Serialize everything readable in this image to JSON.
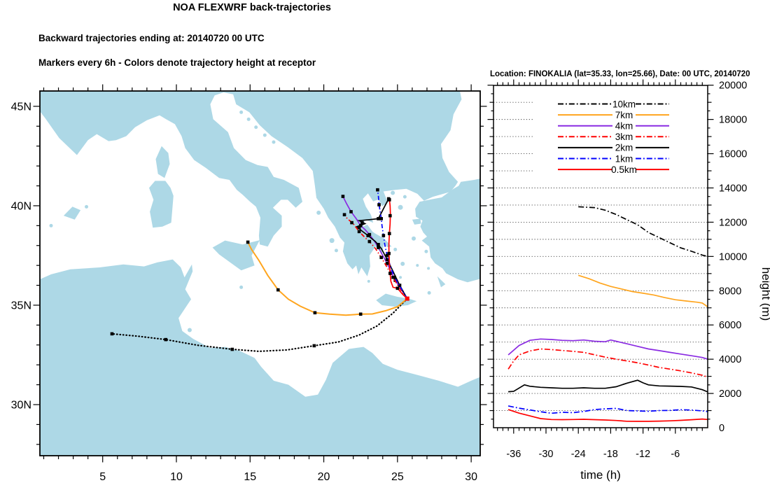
{
  "titles": {
    "main": "NOA FLEXWRF back-trajectories",
    "subtitle1": "Backward trajectories ending at: 20140720  00 UTC",
    "subtitle2": "Markers every 6h - Colors denote trajectory height at receptor",
    "panel_title": "Location: FINOKALIA (lat=35.33,  lon=25.66), Date: 00 UTC, 20140720",
    "time_axis_label": "time (h)",
    "height_axis_label": "height (m)"
  },
  "colors": {
    "land": "#ADD8E6",
    "sea": "#FFFFFF",
    "frame": "#000000",
    "grid": "#4a4a4a",
    "receptor": "#FF0000"
  },
  "chart_data": {
    "type": "line",
    "map_panel": {
      "extent": {
        "lon_min": 0.74,
        "lon_max": 30.61,
        "lat_min": 27.43,
        "lat_max": 45.77
      },
      "lon_ticks": [
        5,
        10,
        15,
        20,
        25,
        30
      ],
      "lon_tick_labels": [
        "5",
        "10",
        "15",
        "20",
        "25",
        "30"
      ],
      "lat_ticks": [
        30,
        35,
        40,
        45
      ],
      "lat_tick_labels": [
        "30N",
        "35N",
        "40N",
        "45N"
      ],
      "receptor": {
        "lon": 25.66,
        "lat": 35.33
      }
    },
    "profile_panel": {
      "xlabel": "time (h)",
      "ylabel": "height (m)",
      "xlim": [
        -39.7,
        0
      ],
      "ylim": [
        0,
        20000
      ],
      "xticks": [
        -36,
        -30,
        -24,
        -18,
        -12,
        -6
      ],
      "yticks": [
        0,
        2000,
        4000,
        6000,
        8000,
        10000,
        12000,
        14000,
        16000,
        18000,
        20000
      ],
      "grid_interval_m": 1000,
      "legend_position": "top-right"
    },
    "series": [
      {
        "name": "10km",
        "color": "#000000",
        "dash": "dashdot",
        "map_dash": "dotted",
        "map_path": [
          [
            25.66,
            35.33
          ],
          [
            24.7,
            34.6
          ],
          [
            23.6,
            33.95
          ],
          [
            22.4,
            33.5
          ],
          [
            21.0,
            33.15
          ],
          [
            19.35,
            32.96
          ],
          [
            17.5,
            32.75
          ],
          [
            15.6,
            32.68
          ],
          [
            13.79,
            32.78
          ],
          [
            11.5,
            32.98
          ],
          [
            9.28,
            33.27
          ],
          [
            7.4,
            33.44
          ],
          [
            5.63,
            33.56
          ]
        ],
        "map_markers": [
          [
            19.35,
            32.96
          ],
          [
            13.79,
            32.78
          ],
          [
            9.28,
            33.27
          ],
          [
            5.63,
            33.56
          ]
        ],
        "profile": [
          [
            -24,
            12900
          ],
          [
            -21,
            12850
          ],
          [
            -19,
            12700
          ],
          [
            -17,
            12450
          ],
          [
            -15,
            12150
          ],
          [
            -13,
            11850
          ],
          [
            -11,
            11400
          ],
          [
            -9,
            11100
          ],
          [
            -7,
            10800
          ],
          [
            -5,
            10500
          ],
          [
            -3,
            10300
          ],
          [
            -1,
            10080
          ],
          [
            0,
            10000
          ]
        ]
      },
      {
        "name": "7km",
        "color": "#FFA51E",
        "dash": "solid",
        "map_dash": "solid",
        "map_path": [
          [
            25.66,
            35.33
          ],
          [
            25.0,
            34.92
          ],
          [
            24.2,
            34.72
          ],
          [
            23.3,
            34.56
          ],
          [
            22.5,
            34.55
          ],
          [
            21.5,
            34.5
          ],
          [
            20.4,
            34.55
          ],
          [
            19.4,
            34.62
          ],
          [
            18.4,
            34.95
          ],
          [
            17.6,
            35.3
          ],
          [
            16.9,
            35.77
          ],
          [
            16.2,
            36.5
          ],
          [
            15.6,
            37.25
          ],
          [
            15.1,
            37.8
          ],
          [
            14.85,
            38.17
          ]
        ],
        "map_markers": [
          [
            22.5,
            34.55
          ],
          [
            19.4,
            34.62
          ],
          [
            16.9,
            35.77
          ],
          [
            14.85,
            38.17
          ]
        ],
        "profile": [
          [
            -24,
            8900
          ],
          [
            -22,
            8700
          ],
          [
            -20,
            8450
          ],
          [
            -18,
            8250
          ],
          [
            -16,
            8100
          ],
          [
            -14,
            7950
          ],
          [
            -12,
            7850
          ],
          [
            -10,
            7750
          ],
          [
            -8,
            7600
          ],
          [
            -6,
            7470
          ],
          [
            -4,
            7400
          ],
          [
            -2,
            7330
          ],
          [
            -1,
            7280
          ],
          [
            0,
            7060
          ]
        ]
      },
      {
        "name": "4km",
        "color": "#8A2BE2",
        "dash": "solid",
        "map_dash": "solid",
        "map_path": [
          [
            25.66,
            35.33
          ],
          [
            25.25,
            35.8
          ],
          [
            24.85,
            36.25
          ],
          [
            24.55,
            36.7
          ],
          [
            24.3,
            37.1
          ],
          [
            24.0,
            37.5
          ],
          [
            23.7,
            37.9
          ],
          [
            23.4,
            38.25
          ],
          [
            23.1,
            38.55
          ],
          [
            22.8,
            38.8
          ],
          [
            22.5,
            39.0
          ],
          [
            22.2,
            39.35
          ],
          [
            21.85,
            39.7
          ],
          [
            21.55,
            40.1
          ],
          [
            21.3,
            40.47
          ]
        ],
        "map_markers": [
          [
            24.85,
            36.25
          ],
          [
            24.3,
            37.1
          ],
          [
            23.7,
            37.9
          ],
          [
            23.1,
            38.55
          ],
          [
            22.5,
            39.0
          ],
          [
            21.85,
            39.7
          ],
          [
            21.3,
            40.47
          ]
        ],
        "profile": [
          [
            -37,
            4250
          ],
          [
            -35,
            4800
          ],
          [
            -33,
            5100
          ],
          [
            -31,
            5180
          ],
          [
            -29,
            5150
          ],
          [
            -27,
            5100
          ],
          [
            -25,
            5080
          ],
          [
            -23,
            5120
          ],
          [
            -21,
            5050
          ],
          [
            -19,
            5020
          ],
          [
            -18,
            5120
          ],
          [
            -17,
            5050
          ],
          [
            -15,
            4900
          ],
          [
            -13,
            4750
          ],
          [
            -11,
            4600
          ],
          [
            -9,
            4500
          ],
          [
            -7,
            4400
          ],
          [
            -5,
            4300
          ],
          [
            -3,
            4200
          ],
          [
            -1,
            4100
          ],
          [
            0,
            4000
          ]
        ]
      },
      {
        "name": "3km",
        "color": "#FF0000",
        "dash": "dashdot",
        "map_dash": "dashdot",
        "map_path": [
          [
            25.66,
            35.33
          ],
          [
            25.1,
            35.9
          ],
          [
            24.7,
            36.4
          ],
          [
            24.3,
            36.9
          ],
          [
            23.9,
            37.4
          ],
          [
            23.5,
            37.85
          ],
          [
            23.1,
            38.2
          ],
          [
            22.8,
            38.4
          ],
          [
            22.4,
            38.7
          ],
          [
            22.0,
            39.1
          ],
          [
            21.6,
            39.35
          ],
          [
            21.4,
            39.55
          ]
        ],
        "map_markers": [
          [
            24.7,
            36.4
          ],
          [
            23.9,
            37.4
          ],
          [
            23.1,
            38.2
          ],
          [
            22.4,
            38.7
          ],
          [
            21.9,
            39.15
          ],
          [
            21.4,
            39.55
          ]
        ],
        "profile": [
          [
            -37,
            3420
          ],
          [
            -36,
            3900
          ],
          [
            -35,
            4250
          ],
          [
            -33,
            4480
          ],
          [
            -31,
            4600
          ],
          [
            -29,
            4560
          ],
          [
            -27,
            4510
          ],
          [
            -25,
            4460
          ],
          [
            -23,
            4400
          ],
          [
            -21,
            4260
          ],
          [
            -19,
            4120
          ],
          [
            -17,
            4000
          ],
          [
            -15,
            3900
          ],
          [
            -13,
            3790
          ],
          [
            -11,
            3660
          ],
          [
            -9,
            3520
          ],
          [
            -7,
            3420
          ],
          [
            -5,
            3320
          ],
          [
            -3,
            3200
          ],
          [
            -1,
            3060
          ],
          [
            0,
            2950
          ]
        ]
      },
      {
        "name": "2km",
        "color": "#000000",
        "dash": "solid",
        "map_dash": "solid",
        "map_path": [
          [
            25.66,
            35.33
          ],
          [
            25.15,
            36.0
          ],
          [
            24.7,
            36.7
          ],
          [
            24.3,
            37.3
          ],
          [
            23.9,
            37.85
          ],
          [
            23.5,
            38.2
          ],
          [
            23.0,
            38.5
          ],
          [
            22.55,
            38.75
          ],
          [
            22.25,
            38.95
          ],
          [
            22.8,
            39.1
          ],
          [
            22.4,
            39.25
          ],
          [
            23.1,
            39.3
          ],
          [
            23.7,
            39.35
          ],
          [
            24.05,
            39.85
          ],
          [
            24.4,
            40.35
          ]
        ],
        "map_markers": [
          [
            25.15,
            36.0
          ],
          [
            24.3,
            37.3
          ],
          [
            23.7,
            38.05
          ],
          [
            23.0,
            38.5
          ],
          [
            22.4,
            38.9
          ],
          [
            22.6,
            39.15
          ],
          [
            23.7,
            39.35
          ],
          [
            24.4,
            40.35
          ]
        ],
        "profile": [
          [
            -37,
            2100
          ],
          [
            -36,
            2120
          ],
          [
            -34,
            2500
          ],
          [
            -33,
            2420
          ],
          [
            -31,
            2360
          ],
          [
            -29,
            2330
          ],
          [
            -27,
            2300
          ],
          [
            -25,
            2300
          ],
          [
            -23,
            2330
          ],
          [
            -21,
            2300
          ],
          [
            -19,
            2300
          ],
          [
            -17,
            2390
          ],
          [
            -15,
            2600
          ],
          [
            -13,
            2770
          ],
          [
            -12,
            2620
          ],
          [
            -11,
            2500
          ],
          [
            -9,
            2440
          ],
          [
            -7,
            2430
          ],
          [
            -5,
            2410
          ],
          [
            -3,
            2380
          ],
          [
            -1,
            2220
          ],
          [
            0,
            2090
          ]
        ]
      },
      {
        "name": "1km",
        "color": "#0000FF",
        "dash": "dashdot",
        "map_dash": "dashdot",
        "map_path": [
          [
            25.66,
            35.33
          ],
          [
            25.2,
            35.9
          ],
          [
            24.8,
            36.4
          ],
          [
            24.5,
            37.0
          ],
          [
            24.3,
            37.5
          ],
          [
            24.15,
            38.0
          ],
          [
            24.05,
            38.5
          ],
          [
            23.95,
            39.0
          ],
          [
            23.9,
            39.35
          ],
          [
            23.8,
            39.8
          ],
          [
            23.75,
            40.1
          ],
          [
            23.7,
            40.5
          ],
          [
            23.65,
            40.8
          ]
        ],
        "map_markers": [
          [
            24.8,
            36.4
          ],
          [
            24.3,
            37.5
          ],
          [
            24.05,
            38.5
          ],
          [
            23.9,
            39.35
          ],
          [
            23.75,
            40.05
          ],
          [
            23.65,
            40.8
          ]
        ],
        "profile": [
          [
            -37,
            1270
          ],
          [
            -35,
            1140
          ],
          [
            -33,
            1040
          ],
          [
            -31,
            930
          ],
          [
            -29,
            840
          ],
          [
            -27,
            900
          ],
          [
            -25,
            880
          ],
          [
            -23,
            950
          ],
          [
            -21,
            1060
          ],
          [
            -19,
            1100
          ],
          [
            -17,
            1130
          ],
          [
            -15,
            1000
          ],
          [
            -13,
            980
          ],
          [
            -11,
            960
          ],
          [
            -9,
            1000
          ],
          [
            -7,
            1010
          ],
          [
            -5,
            1050
          ],
          [
            -3,
            1030
          ],
          [
            -1,
            980
          ],
          [
            0,
            940
          ]
        ]
      },
      {
        "name": "0.5km",
        "color": "#FF0000",
        "dash": "solid",
        "map_dash": "solid",
        "map_path": [
          [
            25.66,
            35.33
          ],
          [
            25.35,
            35.55
          ],
          [
            25.0,
            35.85
          ],
          [
            24.7,
            35.9
          ],
          [
            24.55,
            36.2
          ],
          [
            24.5,
            36.6
          ],
          [
            24.45,
            37.1
          ],
          [
            24.42,
            37.6
          ],
          [
            24.42,
            38.1
          ],
          [
            24.45,
            38.6
          ],
          [
            24.5,
            39.1
          ],
          [
            24.52,
            39.6
          ],
          [
            24.5,
            40.0
          ],
          [
            24.45,
            40.3
          ]
        ],
        "map_markers": [
          [
            25.0,
            35.85
          ],
          [
            24.5,
            36.6
          ],
          [
            24.42,
            37.6
          ],
          [
            24.45,
            38.6
          ],
          [
            24.5,
            39.5
          ],
          [
            24.45,
            40.3
          ]
        ],
        "profile": [
          [
            -37,
            1060
          ],
          [
            -35,
            850
          ],
          [
            -33,
            690
          ],
          [
            -31,
            530
          ],
          [
            -29,
            480
          ],
          [
            -27,
            470
          ],
          [
            -25,
            480
          ],
          [
            -23,
            490
          ],
          [
            -21,
            470
          ],
          [
            -19,
            450
          ],
          [
            -17,
            420
          ],
          [
            -15,
            375
          ],
          [
            -13,
            370
          ],
          [
            -11,
            370
          ],
          [
            -9,
            385
          ],
          [
            -7,
            400
          ],
          [
            -5,
            430
          ],
          [
            -3,
            465
          ],
          [
            -1,
            505
          ],
          [
            0,
            480
          ]
        ]
      }
    ]
  }
}
